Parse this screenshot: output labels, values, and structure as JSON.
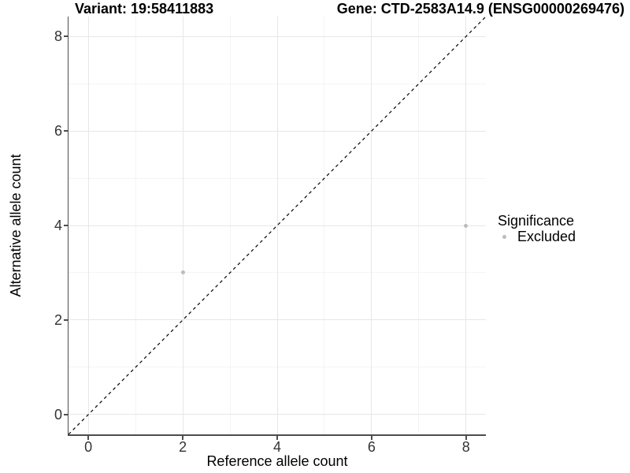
{
  "header": {
    "variant_title": "Variant: 19:58411883",
    "gene_title": "Gene: CTD-2583A14.9 (ENSG00000269476)"
  },
  "chart_data": {
    "type": "scatter",
    "xlabel": "Reference allele count",
    "ylabel": "Alternative allele count",
    "xlim": [
      -0.42,
      8.42
    ],
    "ylim": [
      -0.42,
      8.42
    ],
    "major_ticks": [
      0,
      2,
      4,
      6,
      8
    ],
    "minor_ticks": [
      1,
      3,
      5,
      7
    ],
    "grid": "major+minor",
    "identity_line": {
      "show": true,
      "style": "dashed",
      "color": "#000000"
    },
    "series": [
      {
        "name": "Excluded",
        "color": "#bcbcbc",
        "points": [
          {
            "x": 2,
            "y": 3
          },
          {
            "x": 8,
            "y": 4
          }
        ]
      }
    ],
    "legend": {
      "position": "right",
      "title": "Significance",
      "items": [
        {
          "label": "Excluded",
          "color": "#bcbcbc"
        }
      ]
    },
    "colors": {
      "point": "#bcbcbc",
      "grid_major": "#e7e7e7",
      "grid_minor": "#f4f4f4",
      "axis_line": "#4d4d4d",
      "tick_label": "#333333",
      "title": "#000000"
    }
  }
}
